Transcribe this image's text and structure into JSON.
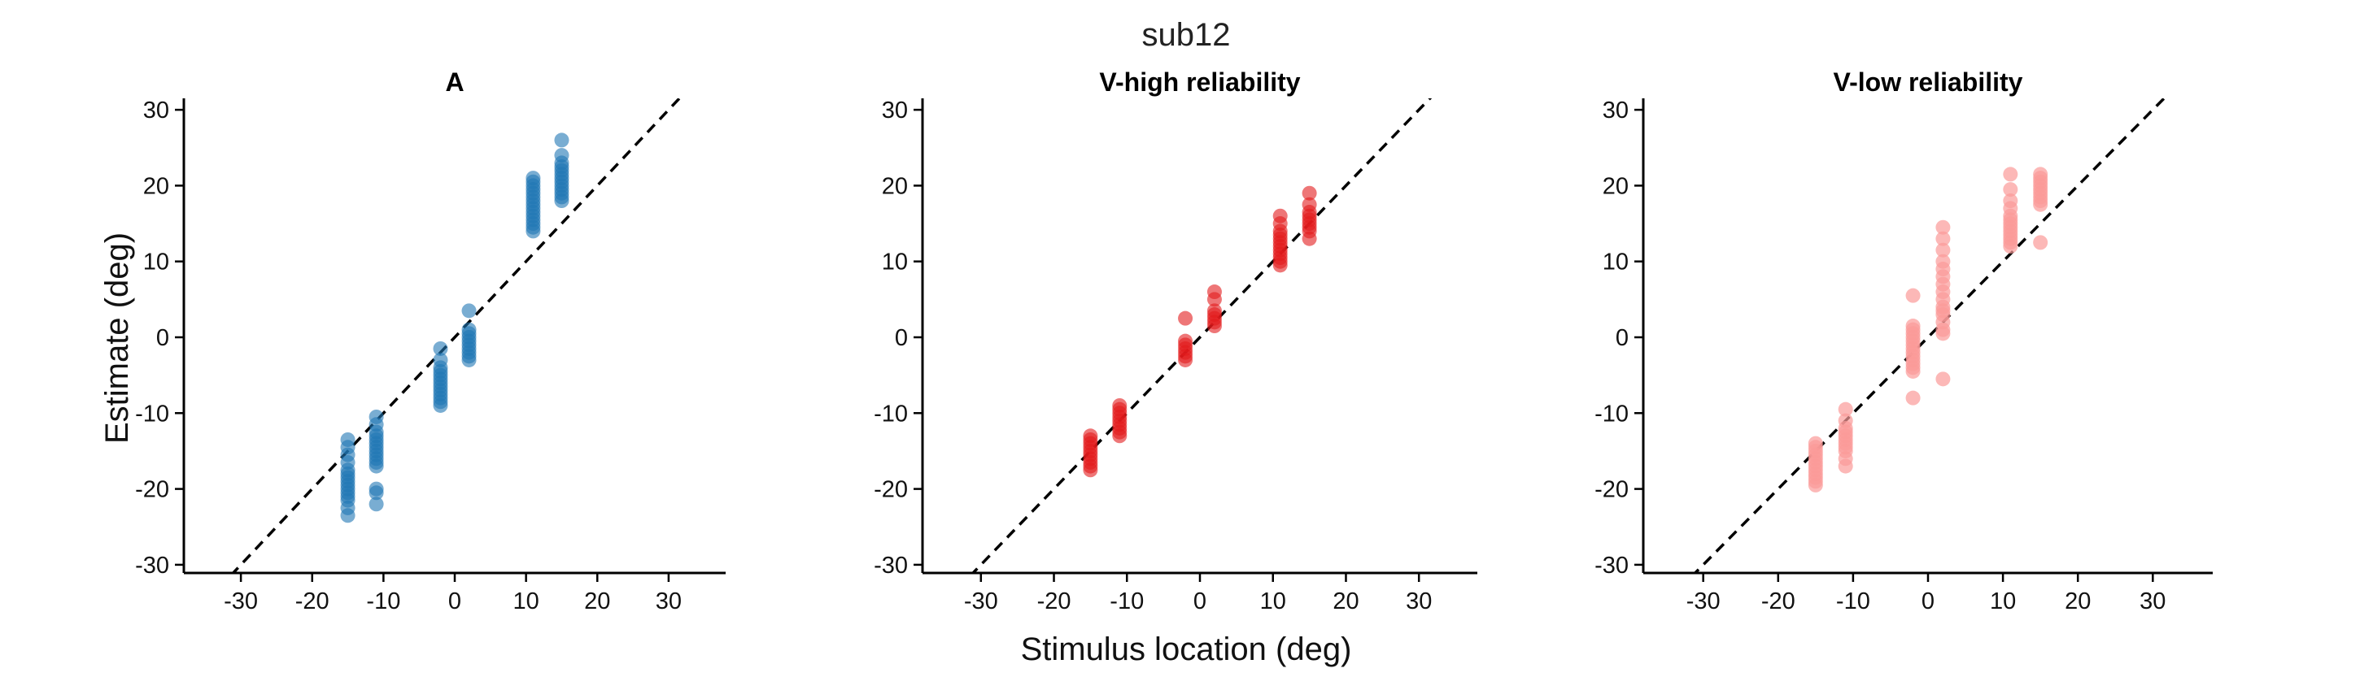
{
  "figure": {
    "title": "sub12",
    "xlabel": "Stimulus location (deg)",
    "ylabel": "Estimate (deg)"
  },
  "chart_data": [
    {
      "type": "scatter",
      "title": "A",
      "color": "#1f77b4",
      "point_opacity": 0.6,
      "xlim": [
        -38,
        38
      ],
      "ylim": [
        -31,
        31
      ],
      "xticks": [
        -30,
        -20,
        -10,
        0,
        10,
        20,
        30
      ],
      "yticks": [
        -30,
        -20,
        -10,
        0,
        10,
        20,
        30
      ],
      "identity_line": true,
      "points": {
        "-15": [
          -13.5,
          -14.5,
          -15.5,
          -16.5,
          -17.5,
          -18,
          -18.5,
          -19,
          -19.5,
          -20,
          -20.5,
          -21,
          -21.5,
          -22.5,
          -23.5
        ],
        "-11": [
          -10.5,
          -11.5,
          -12.5,
          -13,
          -13.5,
          -14,
          -14.5,
          -15,
          -15.5,
          -16,
          -16.5,
          -17,
          -20,
          -20.5,
          -22
        ],
        "-2": [
          -1.5,
          -3,
          -4,
          -4.5,
          -5,
          -5.5,
          -6,
          -6.5,
          -7,
          -7.5,
          -8,
          -8.5,
          -9
        ],
        "2": [
          3.5,
          1,
          0.5,
          0,
          -0.5,
          -1,
          -1.5,
          -2,
          -2.5,
          -3
        ],
        "11": [
          21,
          20.5,
          20,
          19.5,
          19,
          18.5,
          18,
          17.5,
          17,
          16.5,
          16,
          15.5,
          15,
          14.5,
          14
        ],
        "15": [
          26,
          24,
          23,
          22.5,
          22,
          21.5,
          21,
          20.5,
          20,
          19.5,
          19,
          18.5,
          18
        ]
      }
    },
    {
      "type": "scatter",
      "title": "V-high reliability",
      "color": "#e31a1c",
      "point_opacity": 0.6,
      "xlim": [
        -38,
        38
      ],
      "ylim": [
        -31,
        31
      ],
      "xticks": [
        -30,
        -20,
        -10,
        0,
        10,
        20,
        30
      ],
      "yticks": [
        -30,
        -20,
        -10,
        0,
        10,
        20,
        30
      ],
      "identity_line": true,
      "points": {
        "-15": [
          -13,
          -13.5,
          -14,
          -14.5,
          -15,
          -15.5,
          -16,
          -16.5,
          -17,
          -17.5
        ],
        "-11": [
          -9,
          -9.5,
          -10,
          -10.5,
          -11,
          -11.5,
          -12,
          -12.5,
          -13
        ],
        "-2": [
          2.5,
          -0.5,
          -1,
          -1.5,
          -2,
          -2.5,
          -3
        ],
        "2": [
          6,
          5,
          3.5,
          3,
          2.5,
          2,
          1.5
        ],
        "11": [
          16,
          15,
          14,
          13.5,
          13,
          12.5,
          12,
          11.5,
          11,
          10.5,
          10,
          9.5
        ],
        "15": [
          19,
          17.5,
          16.5,
          16,
          15.5,
          15,
          14.5,
          14,
          13
        ]
      }
    },
    {
      "type": "scatter",
      "title": "V-low reliability",
      "color": "#fb9a99",
      "point_opacity": 0.7,
      "xlim": [
        -38,
        38
      ],
      "ylim": [
        -31,
        31
      ],
      "xticks": [
        -30,
        -20,
        -10,
        0,
        10,
        20,
        30
      ],
      "yticks": [
        -30,
        -20,
        -10,
        0,
        10,
        20,
        30
      ],
      "identity_line": true,
      "points": {
        "-15": [
          -14,
          -14.5,
          -15,
          -15.5,
          -16,
          -16.5,
          -17,
          -17.5,
          -18,
          -18.5,
          -19,
          -19.5
        ],
        "-11": [
          -9.5,
          -11,
          -12,
          -12.5,
          -13,
          -13.5,
          -14,
          -14.5,
          -15,
          -16,
          -17
        ],
        "-2": [
          5.5,
          1.5,
          1,
          0.5,
          0,
          -0.5,
          -1,
          -1.5,
          -2,
          -2.5,
          -3,
          -3.5,
          -4,
          -4.5,
          -8
        ],
        "2": [
          14.5,
          13,
          11.5,
          10,
          9,
          8,
          7,
          6,
          5,
          4,
          3.5,
          3,
          2,
          1,
          0.5,
          -5.5
        ],
        "11": [
          21.5,
          19.5,
          18,
          17,
          16,
          15.5,
          15,
          14.5,
          14,
          13.5,
          13,
          12.5,
          12
        ],
        "15": [
          21.5,
          21,
          20.5,
          20,
          19.5,
          19,
          18.5,
          18,
          17.5,
          12.5
        ]
      }
    }
  ]
}
